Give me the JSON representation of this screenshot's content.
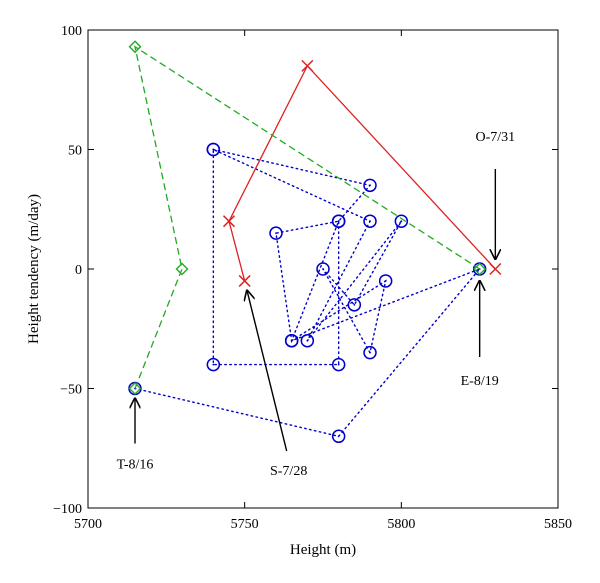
{
  "chart_data": {
    "type": "scatter",
    "title": "",
    "xlabel": "Height (m)",
    "ylabel": "Height tendency (m/day)",
    "xlim": [
      5700,
      5850
    ],
    "ylim": [
      -100,
      100
    ],
    "xticks": [
      5700,
      5750,
      5800,
      5850
    ],
    "yticks": [
      -100,
      -50,
      0,
      50,
      100
    ],
    "grid": false,
    "series": [
      {
        "color": "#0000cc",
        "line_style": "dotted",
        "marker": "circle",
        "points": [
          {
            "x": 5740,
            "y": 50
          },
          {
            "x": 5790,
            "y": 35
          },
          {
            "x": 5780,
            "y": 20
          },
          {
            "x": 5760,
            "y": 15
          },
          {
            "x": 5765,
            "y": -30
          },
          {
            "x": 5780,
            "y": 20
          },
          {
            "x": 5780,
            "y": -40
          },
          {
            "x": 5740,
            "y": -40
          },
          {
            "x": 5740,
            "y": 50
          },
          {
            "x": 5790,
            "y": 20
          },
          {
            "x": 5770,
            "y": -30
          },
          {
            "x": 5800,
            "y": 20
          },
          {
            "x": 5785,
            "y": -15
          },
          {
            "x": 5775,
            "y": 0
          },
          {
            "x": 5790,
            "y": -35
          },
          {
            "x": 5795,
            "y": -5
          },
          {
            "x": 5765,
            "y": -30
          },
          {
            "x": 5825,
            "y": 0
          },
          {
            "x": 5780,
            "y": -70
          },
          {
            "x": 5715,
            "y": -50
          }
        ]
      },
      {
        "color": "#dd2222",
        "line_style": "solid",
        "marker": "x",
        "points": [
          {
            "x": 5750,
            "y": -5
          },
          {
            "x": 5745,
            "y": 20
          },
          {
            "x": 5770,
            "y": 85
          },
          {
            "x": 5830,
            "y": 0
          }
        ]
      },
      {
        "color": "#22aa22",
        "line_style": "dashed",
        "marker": "diamond",
        "points": [
          {
            "x": 5715,
            "y": -50
          },
          {
            "x": 5730,
            "y": 0
          },
          {
            "x": 5715,
            "y": 93
          },
          {
            "x": 5825,
            "y": 0
          }
        ]
      }
    ],
    "annotations": [
      {
        "text": "O-7/31",
        "point": {
          "x": 5830,
          "y": 0
        },
        "side": "above"
      },
      {
        "text": "E-8/19",
        "point": {
          "x": 5825,
          "y": 0
        },
        "side": "below"
      },
      {
        "text": "S-7/28",
        "point": {
          "x": 5750,
          "y": -5
        },
        "side": "below"
      },
      {
        "text": "T-8/16",
        "point": {
          "x": 5715,
          "y": -50
        },
        "side": "below"
      }
    ]
  }
}
